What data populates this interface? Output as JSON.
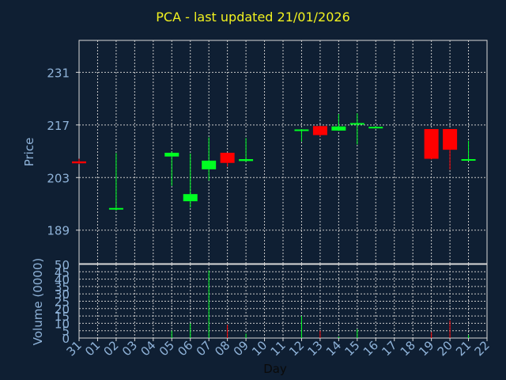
{
  "chart_data": {
    "type": "candlestick",
    "title": "PCA - last updated 21/01/2026",
    "colors": {
      "background": "#0f1f33",
      "axis": "#d9d9d9",
      "grid": "#c8c8c8",
      "label": "#8fb3d9",
      "title": "#f2f21f",
      "up": "#00ff22",
      "down": "#ff0000"
    },
    "xlabel": "Day",
    "x_ticks": [
      "31",
      "01",
      "02",
      "03",
      "04",
      "05",
      "06",
      "07",
      "08",
      "09",
      "10",
      "11",
      "12",
      "13",
      "14",
      "15",
      "16",
      "17",
      "18",
      "19",
      "20",
      "21",
      "22"
    ],
    "price_panel": {
      "ylabel": "Price",
      "ylim": [
        180.1,
        239.5
      ],
      "y_ticks": [
        189,
        203,
        217,
        231
      ],
      "candles": [
        {
          "day": "31",
          "open": 207.3,
          "high": 208.0,
          "low": 206.6,
          "close": 206.8
        },
        {
          "day": "02",
          "open": 194.5,
          "high": 209.5,
          "low": 194.2,
          "close": 194.9
        },
        {
          "day": "05",
          "open": 208.6,
          "high": 209.9,
          "low": 200.8,
          "close": 209.6
        },
        {
          "day": "06",
          "open": 196.7,
          "high": 209.4,
          "low": 195.0,
          "close": 198.6
        },
        {
          "day": "07",
          "open": 205.2,
          "high": 213.7,
          "low": 202.2,
          "close": 207.5
        },
        {
          "day": "08",
          "open": 209.6,
          "high": 209.6,
          "low": 205.9,
          "close": 206.9
        },
        {
          "day": "09",
          "open": 207.4,
          "high": 213.5,
          "low": 207.2,
          "close": 207.9
        },
        {
          "day": "12",
          "open": 215.4,
          "high": 215.9,
          "low": 212.6,
          "close": 215.8
        },
        {
          "day": "13",
          "open": 216.7,
          "high": 216.7,
          "low": 213.9,
          "close": 214.3
        },
        {
          "day": "14",
          "open": 215.5,
          "high": 219.9,
          "low": 215.4,
          "close": 216.6
        },
        {
          "day": "15",
          "open": 217.2,
          "high": 220.1,
          "low": 211.8,
          "close": 217.5
        },
        {
          "day": "16",
          "open": 216.4,
          "high": 216.7,
          "low": 216.1,
          "close": 216.5
        },
        {
          "day": "19",
          "open": 215.9,
          "high": 215.9,
          "low": 207.8,
          "close": 208.0
        },
        {
          "day": "20",
          "open": 215.9,
          "high": 215.9,
          "low": 205.1,
          "close": 210.4
        },
        {
          "day": "21",
          "open": 207.7,
          "high": 212.8,
          "low": 207.4,
          "close": 207.9
        }
      ]
    },
    "volume_panel": {
      "ylabel": "Volume (0000)",
      "ylim": [
        0,
        50
      ],
      "y_ticks": [
        0,
        5,
        10,
        15,
        20,
        25,
        30,
        35,
        40,
        45,
        50
      ],
      "bars": [
        {
          "day": "05",
          "value": 5,
          "direction": "up"
        },
        {
          "day": "06",
          "value": 10,
          "direction": "up"
        },
        {
          "day": "07",
          "value": 46,
          "direction": "up"
        },
        {
          "day": "08",
          "value": 9,
          "direction": "down"
        },
        {
          "day": "09",
          "value": 3,
          "direction": "up"
        },
        {
          "day": "12",
          "value": 15,
          "direction": "up"
        },
        {
          "day": "13",
          "value": 5,
          "direction": "down"
        },
        {
          "day": "14",
          "value": 1,
          "direction": "up"
        },
        {
          "day": "15",
          "value": 6,
          "direction": "up"
        },
        {
          "day": "19",
          "value": 4,
          "direction": "down"
        },
        {
          "day": "20",
          "value": 12,
          "direction": "down"
        },
        {
          "day": "21",
          "value": 2,
          "direction": "up"
        }
      ]
    }
  }
}
